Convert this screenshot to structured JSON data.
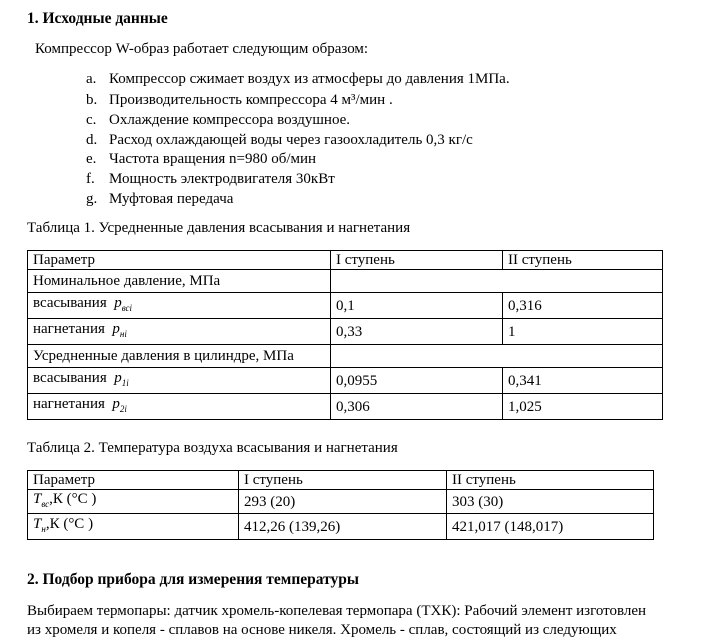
{
  "section1": {
    "title": "1. Исходные данные",
    "intro": "Компрессор W-образ работает следующим образом:",
    "items": [
      {
        "marker": "a.",
        "text": "Компрессор сжимает воздух из атмосферы до давления  1МПа."
      },
      {
        "marker": "b.",
        "text": "Производительность компрессора 4 м³/мин ."
      },
      {
        "marker": "c.",
        "text": "Охлаждение компрессора воздушное."
      },
      {
        "marker": "d.",
        "text": "Расход охлаждающей воды через газоохладитель 0,3 кг/с"
      },
      {
        "marker": "e.",
        "text": "Частота вращения n=980 об/мин"
      },
      {
        "marker": "f.",
        "text": "Мощность электродвигателя 30кВт"
      },
      {
        "marker": "g.",
        "text": "Муфтовая передача"
      }
    ]
  },
  "table1": {
    "caption": "Таблица 1. Усредненные давления всасывания и нагнетания",
    "headers": [
      "Параметр",
      "I ступень",
      "II ступень"
    ],
    "group1": "Номинальное давление, МПа",
    "group2": "Усредненные давления в цилиндре, МПа",
    "rows": [
      {
        "label": "всасывания",
        "sym": "p",
        "sub": "всi",
        "v1": "0,1",
        "v2": "0,316"
      },
      {
        "label": "нагнетания",
        "sym": "p",
        "sub": "нi",
        "v1": "0,33",
        "v2": "1"
      },
      {
        "label": "всасывания",
        "sym": "p",
        "sub": "1i",
        "v1": "0,0955",
        "v2": "0,341"
      },
      {
        "label": "нагнетания",
        "sym": "p",
        "sub": "2i",
        "v1": "0,306",
        "v2": "1,025"
      }
    ]
  },
  "table2": {
    "caption": "Таблица 2. Температура воздуха всасывания и нагнетания",
    "headers": [
      "Параметр",
      "I ступень",
      "II ступень"
    ],
    "rows": [
      {
        "sym": "T",
        "sub": "вс",
        "unit": ",К (°C )",
        "v1": "293 (20)",
        "v2": "303 (30)"
      },
      {
        "sym": "T",
        "sub": "н",
        "unit": ",К (°C )",
        "v1": "412,26 (139,26)",
        "v2": "421,017 (148,017)"
      }
    ]
  },
  "section2": {
    "title": "2. Подбор прибора для измерения температуры",
    "line1": "Выбираем термопары: датчик хромель-копелевая термопара (ТХК): Рабочий элемент изготовлен",
    "line2": "из хромеля и копеля - сплавов на основе никеля. Хромель - сплав, состоящий из следующих"
  }
}
